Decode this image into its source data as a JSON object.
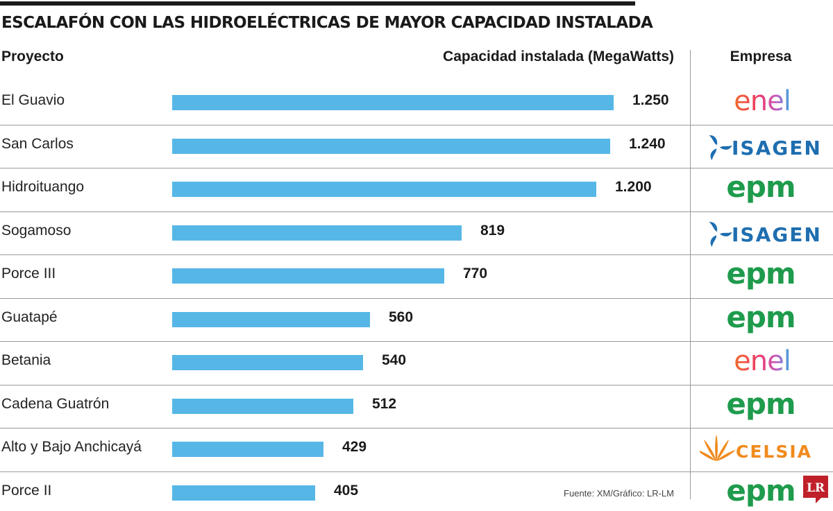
{
  "title": "ESCALAFÓN CON LAS HIDROELÉCTRICAS DE MAYOR CAPACIDAD INSTALADA",
  "headers": {
    "project": "Proyecto",
    "capacity": "Capacidad instalada (MegaWatts)",
    "company": "Empresa"
  },
  "source": "Fuente: XM/Gráfico: LR-LM",
  "colors": {
    "bar": "#56b7e6",
    "enel": "#ee3a46",
    "isagen": "#1e6eb0",
    "epm": "#1e9b4c",
    "celsia": "#f08a1c",
    "lr": "#c0202a"
  },
  "logos": {
    "enel": {
      "text": "enel",
      "icon": "enel-logo"
    },
    "isagen": {
      "text": "ISAGEN",
      "icon": "isagen-logo"
    },
    "epm": {
      "text": "epm",
      "icon": "epm-logo"
    },
    "celsia": {
      "text": "CELSIA",
      "icon": "celsia-logo"
    },
    "lr": {
      "text": "LR",
      "icon": "lr-logo"
    }
  },
  "chart_data": {
    "type": "bar",
    "orientation": "horizontal",
    "title": "ESCALAFÓN CON LAS HIDROELÉCTRICAS DE MAYOR CAPACIDAD INSTALADA",
    "xlabel": "Capacidad instalada (MegaWatts)",
    "ylabel": "Proyecto",
    "categories": [
      "El Guavio",
      "San Carlos",
      "Hidroituango",
      "Sogamoso",
      "Porce III",
      "Guatapé",
      "Betania",
      "Cadena Guatrón",
      "Alto y Bajo Anchicayá",
      "Porce II"
    ],
    "values": [
      1250,
      1240,
      1200,
      819,
      770,
      560,
      540,
      512,
      429,
      405
    ],
    "value_labels": [
      "1.250",
      "1.240",
      "1.200",
      "819",
      "770",
      "560",
      "540",
      "512",
      "429",
      "405"
    ],
    "companies": [
      "enel",
      "isagen",
      "epm",
      "isagen",
      "epm",
      "epm",
      "enel",
      "epm",
      "celsia",
      "epm"
    ],
    "xlim": [
      0,
      1250
    ],
    "grid": false,
    "legend": "none"
  }
}
